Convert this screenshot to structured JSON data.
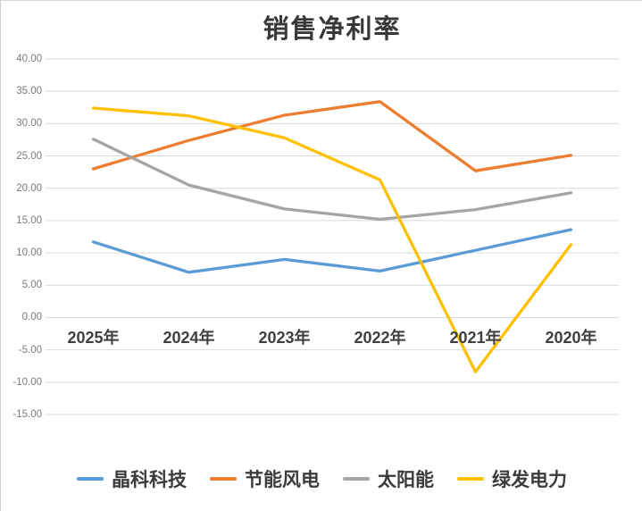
{
  "chart_data": {
    "type": "line",
    "title": "销售净利率",
    "categories": [
      "2025年",
      "2024年",
      "2023年",
      "2022年",
      "2021年",
      "2020年"
    ],
    "series": [
      {
        "name": "晶科科技",
        "color": "#5B9BD5",
        "values": [
          11.7,
          7.0,
          9.0,
          7.2,
          10.4,
          13.6
        ]
      },
      {
        "name": "节能风电",
        "color": "#ED7D31",
        "values": [
          23.0,
          27.4,
          31.3,
          33.4,
          22.7,
          25.1
        ]
      },
      {
        "name": "太阳能",
        "color": "#A5A5A5",
        "values": [
          27.6,
          20.5,
          16.8,
          15.2,
          16.7,
          19.3
        ]
      },
      {
        "name": "绿发电力",
        "color": "#FFC000",
        "values": [
          32.4,
          31.2,
          27.8,
          21.3,
          -8.4,
          11.3
        ]
      }
    ],
    "ylim": [
      -15,
      40
    ],
    "ytick_step": 5,
    "ytick_labels": [
      "40.00",
      "35.00",
      "30.00",
      "25.00",
      "20.00",
      "15.00",
      "10.00",
      "5.00",
      "0.00",
      "-5.00",
      "-10.00",
      "-15.00"
    ],
    "xlabel": "",
    "ylabel": "",
    "grid": true,
    "gridline_color": "#D9D9D9",
    "legend_position": "bottom",
    "colors": {
      "title_text": "#383838",
      "y_tick_text": "#7A7A7A",
      "x_label_text": "#3F3F3F",
      "legend_text": "#3B3B3B",
      "background": "#FFFFFF"
    }
  }
}
